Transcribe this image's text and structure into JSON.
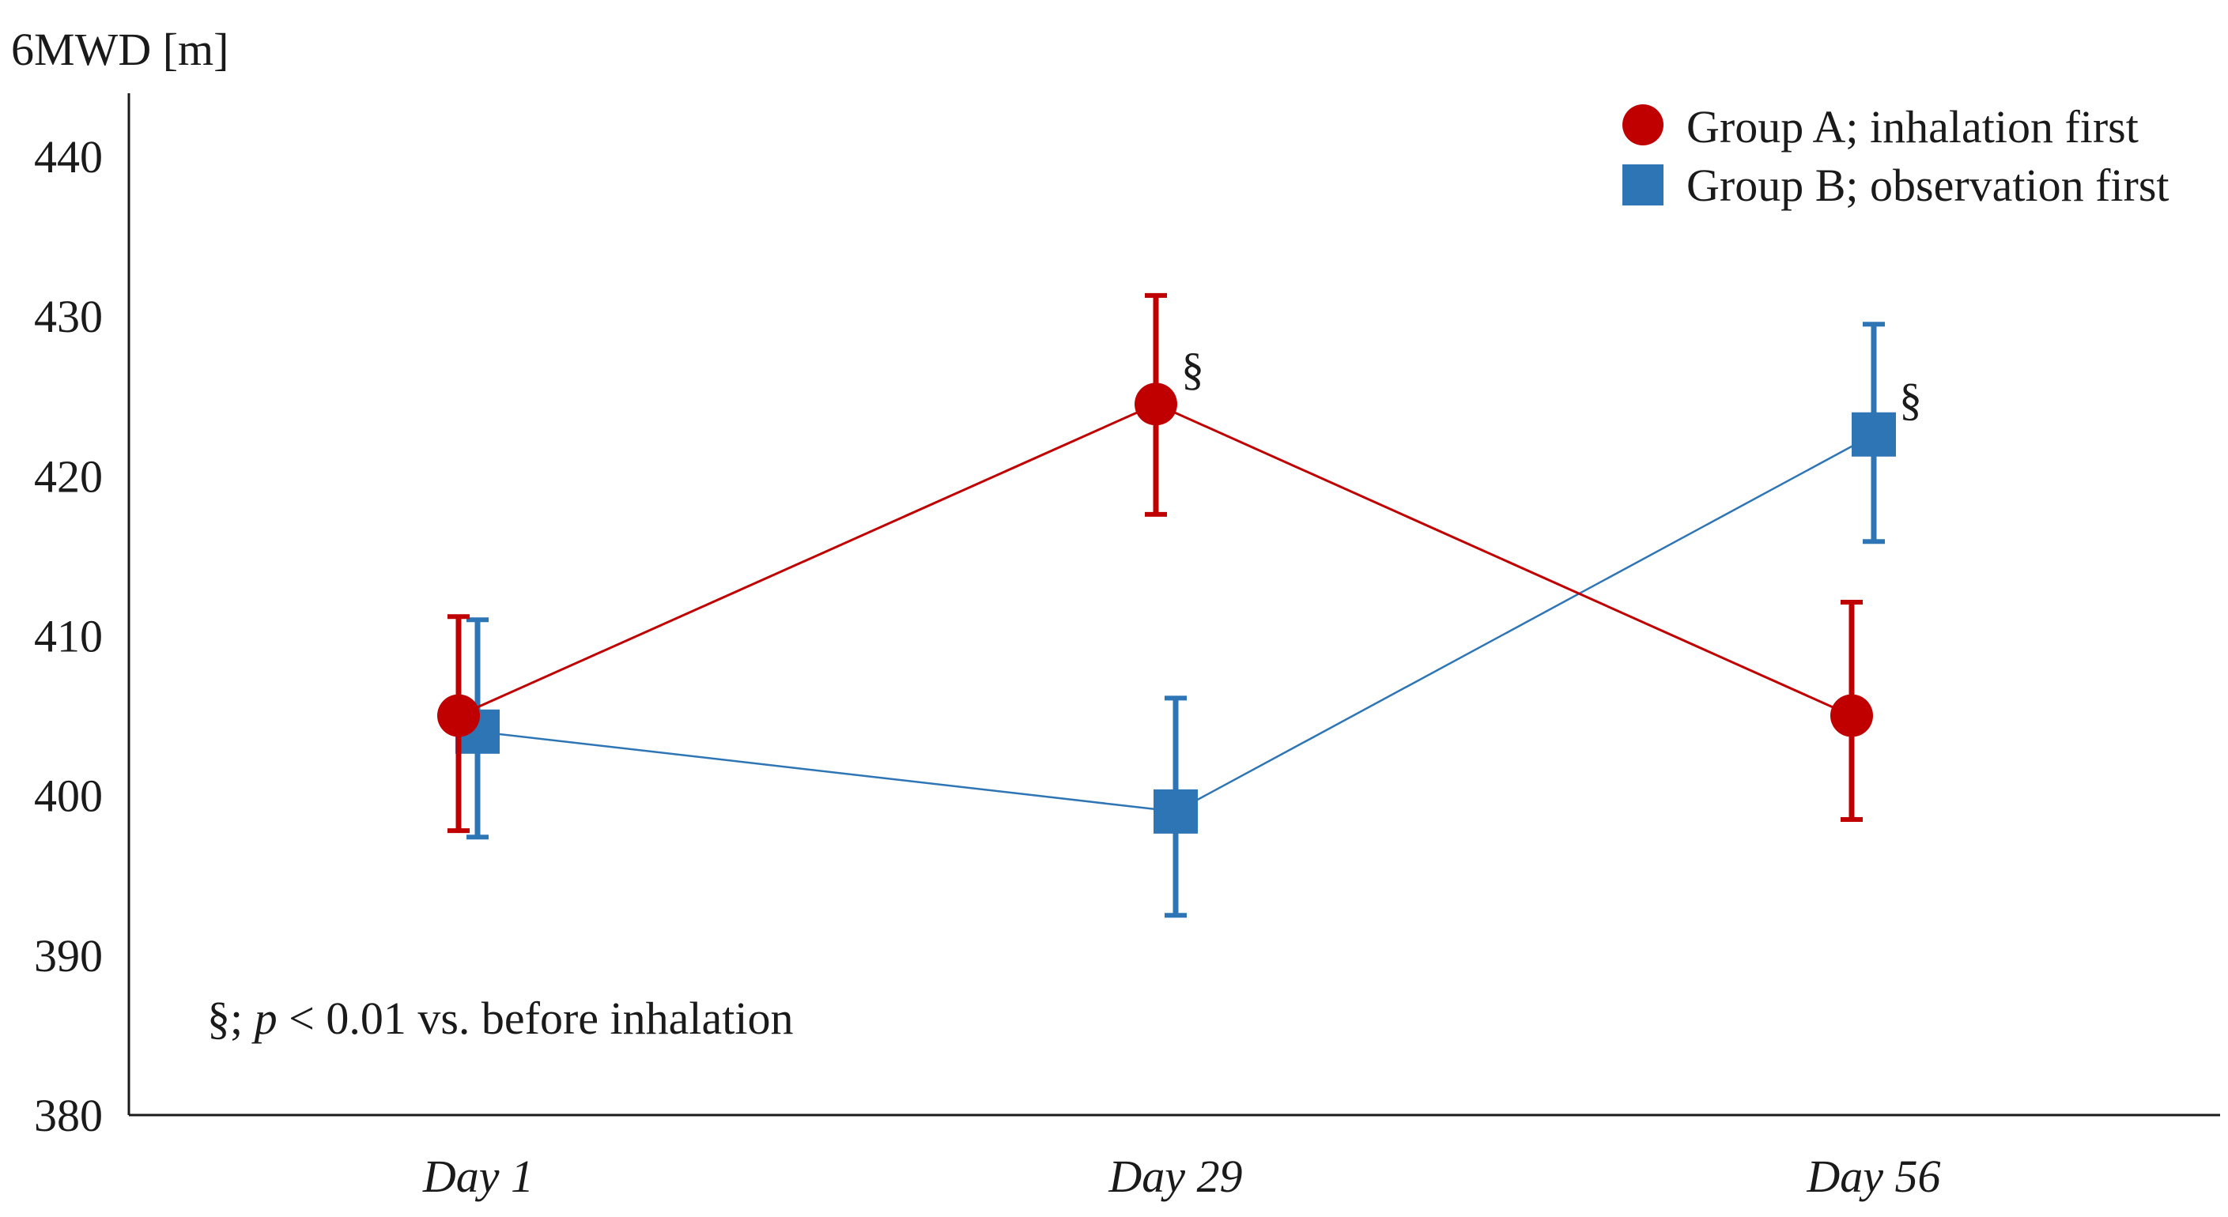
{
  "chart_data": {
    "type": "line",
    "title": "",
    "ylabel": "6MWD [m]",
    "xlabel": "",
    "categories": [
      "Day 1",
      "Day 29",
      "Day 56"
    ],
    "ylim": [
      380,
      440
    ],
    "yticks": [
      380,
      390,
      400,
      410,
      420,
      430,
      440
    ],
    "grid": false,
    "legend_position": "top-right",
    "series": [
      {
        "name": "Group A; inhalation first",
        "color": "#c00000",
        "marker": "circle",
        "values": [
          405,
          424.5,
          405
        ],
        "err_low": [
          397.8,
          417.6,
          398.5
        ],
        "err_high": [
          411.2,
          431.3,
          412.1
        ],
        "significant": [
          false,
          true,
          false
        ]
      },
      {
        "name": "Group B; observation first",
        "color": "#2e75b6",
        "marker": "square",
        "values": [
          404,
          399,
          422.6
        ],
        "err_low": [
          397.4,
          392.5,
          415.9
        ],
        "err_high": [
          411,
          406.1,
          429.5
        ],
        "significant": [
          false,
          false,
          true
        ]
      }
    ],
    "significance_symbol": "§",
    "footnote": {
      "prefix": "§; ",
      "italic": "p",
      "suffix": " < 0.01 vs. before inhalation"
    }
  }
}
